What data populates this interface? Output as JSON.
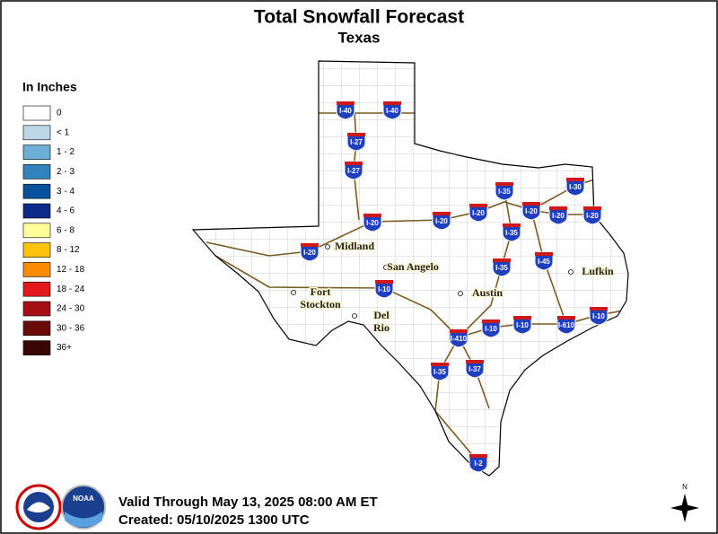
{
  "header": {
    "title": "Total Snowfall Forecast",
    "subtitle": "Texas"
  },
  "legend": {
    "title": "In Inches",
    "items": [
      {
        "label": "0",
        "color": "#ffffff"
      },
      {
        "label": "< 1",
        "color": "#bdd7e7"
      },
      {
        "label": "1 - 2",
        "color": "#6baed6"
      },
      {
        "label": "2 - 3",
        "color": "#3182bd"
      },
      {
        "label": "3 - 4",
        "color": "#08519c"
      },
      {
        "label": "4 - 6",
        "color": "#0c2a8a"
      },
      {
        "label": "6 - 8",
        "color": "#ffff99"
      },
      {
        "label": "8 - 12",
        "color": "#ffc20e"
      },
      {
        "label": "12 - 18",
        "color": "#ff8c00"
      },
      {
        "label": "18 - 24",
        "color": "#e31a1c"
      },
      {
        "label": "24 - 30",
        "color": "#a50f15"
      },
      {
        "label": "30 - 36",
        "color": "#6b0a0a"
      },
      {
        "label": "36+",
        "color": "#3a0505"
      }
    ]
  },
  "cities": [
    [
      "Midland"
    ],
    [
      "San Angelo"
    ],
    [
      "Fort",
      "Stockton"
    ],
    [
      "Del",
      "Rio"
    ],
    [
      "Austin"
    ],
    [
      "Lufkin"
    ]
  ],
  "interstates": [
    "I-40",
    "I-40",
    "I-27",
    "I-27",
    "I-20",
    "I-20",
    "I-20",
    "I-20",
    "I-35",
    "I-20",
    "I-20",
    "I-20",
    "I-30",
    "I-35",
    "I-35",
    "I-45",
    "I-10",
    "I-10",
    "I-10",
    "I-610",
    "I-10",
    "I-410",
    "I-35",
    "I-37",
    "I-2"
  ],
  "footer": {
    "valid": "Valid Through May 13, 2025 08:00 AM ET",
    "created": "Created: 05/10/2025 1300 UTC",
    "noaa": "NOAA",
    "north": "N"
  }
}
